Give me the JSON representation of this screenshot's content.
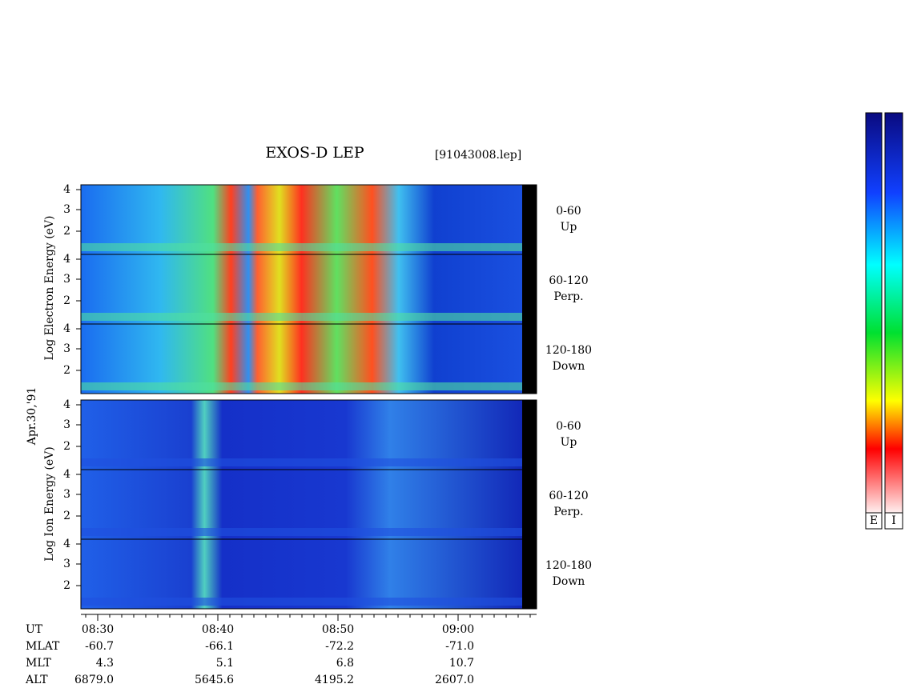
{
  "title": "EXOS-D LEP",
  "file": "[91043008.lep]",
  "electron_label": "Log Electron Energy (eV)",
  "ion_label": "Log Ion Energy (eV)",
  "date": "Apr.30,'91",
  "panels": [
    {
      "y_ticks": [
        "2",
        "3",
        "4"
      ],
      "range": "0-60",
      "direction": "Up"
    },
    {
      "y_ticks": [
        "2",
        "3",
        "4"
      ],
      "range": "60-120",
      "direction": "Perp."
    },
    {
      "y_ticks": [
        "2",
        "3",
        "4"
      ],
      "range": "120-180",
      "direction": "Down"
    },
    {
      "y_ticks": [
        "2",
        "3",
        "4"
      ],
      "range": "0-60",
      "direction": "Up"
    },
    {
      "y_ticks": [
        "2",
        "3",
        "4"
      ],
      "range": "60-120",
      "direction": "Perp."
    },
    {
      "y_ticks": [
        "2",
        "3",
        "4"
      ],
      "range": "120-180",
      "direction": "Down"
    }
  ],
  "orbit": {
    "row_labels": [
      "UT",
      "MLAT",
      "MLT",
      "ALT"
    ],
    "columns": [
      [
        "08:30",
        "-60.7",
        "4.3",
        "6879.0"
      ],
      [
        "08:40",
        "-66.1",
        "5.1",
        "5645.6"
      ],
      [
        "08:50",
        "-72.2",
        "6.8",
        "4195.2"
      ],
      [
        "09:00",
        "-71.0",
        "10.7",
        "2607.0"
      ]
    ]
  },
  "colorbar": [
    "E",
    "I"
  ]
}
